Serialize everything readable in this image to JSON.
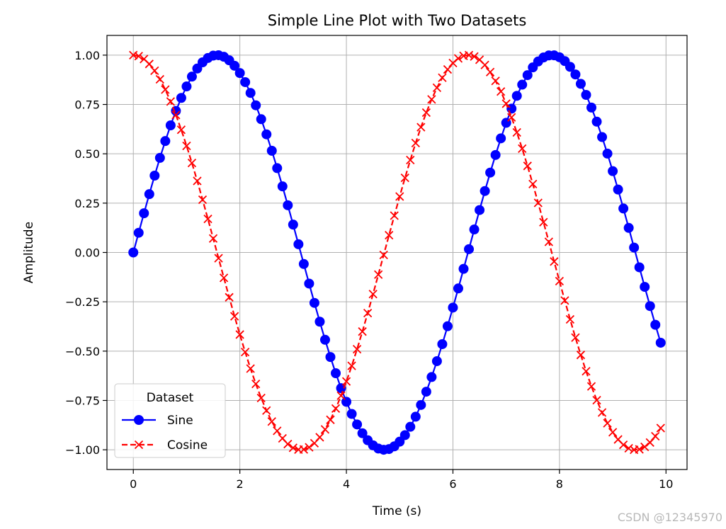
{
  "chart_data": {
    "type": "line",
    "title": "Simple Line Plot with Two Datasets",
    "xlabel": "Time (s)",
    "ylabel": "Amplitude",
    "xlim": [
      -0.495,
      10.395
    ],
    "ylim": [
      -1.1,
      1.1
    ],
    "xticks": [
      0,
      2,
      4,
      6,
      8,
      10
    ],
    "yticks": [
      -1.0,
      -0.75,
      -0.5,
      -0.25,
      0.0,
      0.25,
      0.5,
      0.75,
      1.0
    ],
    "xtick_labels": [
      "0",
      "2",
      "4",
      "6",
      "8",
      "10"
    ],
    "ytick_labels": [
      "−1.00",
      "−0.75",
      "−0.50",
      "−0.25",
      "0.00",
      "0.25",
      "0.50",
      "0.75",
      "1.00"
    ],
    "grid": true,
    "legend": {
      "title": "Dataset",
      "placement": "lower-left"
    },
    "x": [
      0.0,
      0.1,
      0.2,
      0.3,
      0.4,
      0.5,
      0.6,
      0.7,
      0.8,
      0.9,
      1.0,
      1.1,
      1.2,
      1.3,
      1.4,
      1.5,
      1.6,
      1.7,
      1.8,
      1.9,
      2.0,
      2.1,
      2.2,
      2.3,
      2.4,
      2.5,
      2.6,
      2.7,
      2.8,
      2.9,
      3.0,
      3.1,
      3.2,
      3.3,
      3.4,
      3.5,
      3.6,
      3.7,
      3.8,
      3.9,
      4.0,
      4.1,
      4.2,
      4.3,
      4.4,
      4.5,
      4.6,
      4.7,
      4.8,
      4.9,
      5.0,
      5.1,
      5.2,
      5.3,
      5.4,
      5.5,
      5.6,
      5.7,
      5.8,
      5.9,
      6.0,
      6.1,
      6.2,
      6.3,
      6.4,
      6.5,
      6.6,
      6.7,
      6.8,
      6.9,
      7.0,
      7.1,
      7.2,
      7.3,
      7.4,
      7.5,
      7.6,
      7.7,
      7.8,
      7.9,
      8.0,
      8.1,
      8.2,
      8.3,
      8.4,
      8.5,
      8.6,
      8.7,
      8.8,
      8.9,
      9.0,
      9.1,
      9.2,
      9.3,
      9.4,
      9.5,
      9.6,
      9.7,
      9.8,
      9.9
    ],
    "series": [
      {
        "name": "Sine",
        "color": "#0000ff",
        "linestyle": "solid",
        "marker": "circle",
        "values": [
          0.0,
          0.0998,
          0.1987,
          0.2955,
          0.3894,
          0.4794,
          0.5646,
          0.6442,
          0.7174,
          0.7833,
          0.8415,
          0.8912,
          0.932,
          0.9636,
          0.9854,
          0.9975,
          0.9996,
          0.9917,
          0.9738,
          0.9463,
          0.9093,
          0.8632,
          0.8085,
          0.7457,
          0.6755,
          0.5985,
          0.5155,
          0.4274,
          0.335,
          0.2392,
          0.1411,
          0.0416,
          -0.0584,
          -0.1577,
          -0.2555,
          -0.3508,
          -0.4425,
          -0.5298,
          -0.6119,
          -0.6878,
          -0.7568,
          -0.8183,
          -0.8716,
          -0.9162,
          -0.9516,
          -0.9775,
          -0.9937,
          -0.9999,
          -0.9962,
          -0.9825,
          -0.9589,
          -0.9258,
          -0.8835,
          -0.8323,
          -0.7728,
          -0.7055,
          -0.6313,
          -0.5507,
          -0.4646,
          -0.3739,
          -0.2794,
          -0.1822,
          -0.0831,
          0.0168,
          0.1165,
          0.2151,
          0.3115,
          0.4048,
          0.4941,
          0.5784,
          0.657,
          0.729,
          0.7937,
          0.8504,
          0.8987,
          0.938,
          0.9679,
          0.9882,
          0.9985,
          0.9989,
          0.9894,
          0.9699,
          0.9407,
          0.9022,
          0.8546,
          0.7985,
          0.7344,
          0.663,
          0.5849,
          0.501,
          0.4121,
          0.319,
          0.2229,
          0.1245,
          0.0248,
          -0.0752,
          -0.1743,
          -0.2718,
          -0.3665,
          -0.4575
        ]
      },
      {
        "name": "Cosine",
        "color": "#ff0000",
        "linestyle": "dashed",
        "marker": "x",
        "values": [
          1.0,
          0.995,
          0.9801,
          0.9553,
          0.9211,
          0.8776,
          0.8253,
          0.7648,
          0.6967,
          0.6216,
          0.5403,
          0.4536,
          0.3624,
          0.2675,
          0.17,
          0.0707,
          -0.0292,
          -0.1288,
          -0.2272,
          -0.3233,
          -0.4161,
          -0.5048,
          -0.5885,
          -0.6663,
          -0.7374,
          -0.8011,
          -0.8569,
          -0.9041,
          -0.9422,
          -0.971,
          -0.99,
          -0.9991,
          -0.9983,
          -0.9875,
          -0.9668,
          -0.9365,
          -0.8968,
          -0.8481,
          -0.791,
          -0.7259,
          -0.6536,
          -0.5748,
          -0.4903,
          -0.4008,
          -0.3073,
          -0.2108,
          -0.1122,
          -0.0124,
          0.0875,
          0.1865,
          0.2837,
          0.378,
          0.4685,
          0.5544,
          0.6347,
          0.7087,
          0.7756,
          0.8347,
          0.8855,
          0.9275,
          0.9602,
          0.9833,
          0.9965,
          0.9999,
          0.9932,
          0.9766,
          0.9502,
          0.9144,
          0.8694,
          0.8157,
          0.7539,
          0.6845,
          0.6084,
          0.5261,
          0.4385,
          0.3466,
          0.2513,
          0.1534,
          0.054,
          -0.046,
          -0.1455,
          -0.2435,
          -0.3392,
          -0.4314,
          -0.5193,
          -0.602,
          -0.6787,
          -0.7486,
          -0.811,
          -0.8654,
          -0.9111,
          -0.9477,
          -0.975,
          -0.9925,
          -1.0,
          -0.9976,
          -0.9853,
          -0.963,
          -0.9313,
          -0.8901
        ]
      }
    ]
  },
  "watermark": "CSDN @12345970"
}
